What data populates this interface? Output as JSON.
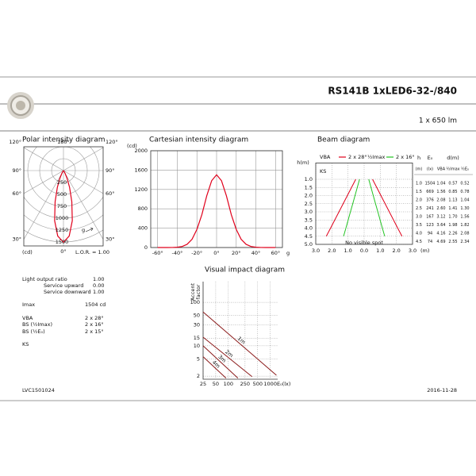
{
  "header": {
    "title": "RS141B 1xLED6-32-/840",
    "flux": "1 x 650 lm"
  },
  "intensity": {
    "angles": [
      -60,
      -55,
      -50,
      -45,
      -40,
      -35,
      -30,
      -25,
      -20,
      -15,
      -10,
      -5,
      0,
      5,
      10,
      15,
      20,
      25,
      30,
      35,
      40,
      45,
      50,
      55,
      60
    ],
    "values": [
      0,
      0,
      0,
      1,
      6,
      21,
      66,
      170,
      375,
      678,
      1069,
      1381,
      1504,
      1381,
      1069,
      678,
      375,
      170,
      66,
      21,
      6,
      1,
      0,
      0,
      0
    ],
    "color": "#e0001b"
  },
  "polar": {
    "title": "Polar intensity diagram",
    "unit": "(cd)",
    "rticks": [
      250,
      500,
      750,
      1000,
      1250,
      1500
    ],
    "angle_ticks": [
      {
        "value": -120,
        "label": "120°"
      },
      {
        "value": 180,
        "label": "180°"
      },
      {
        "value": 120,
        "label": "120°"
      },
      {
        "value": -90,
        "label": "90°"
      },
      {
        "value": 90,
        "label": "90°"
      },
      {
        "value": -60,
        "label": "60°"
      },
      {
        "value": 60,
        "label": "60°"
      },
      {
        "value": -30,
        "label": "30°"
      },
      {
        "value": 30,
        "label": "30°"
      },
      {
        "value": 0,
        "label": "0°"
      }
    ],
    "lor": "L.O.R. = 1.00",
    "g": "g"
  },
  "cartesian": {
    "title": "Cartesian intensity diagram",
    "unit": "(cd)",
    "xlim": [
      -67,
      67
    ],
    "ylim": [
      0,
      2000
    ],
    "yticks": [
      0,
      400,
      800,
      1200,
      1600,
      2000
    ],
    "xticks": [
      {
        "value": -60,
        "label": "-60°"
      },
      {
        "value": -40,
        "label": "-40°"
      },
      {
        "value": -20,
        "label": "-20°"
      },
      {
        "value": 0,
        "label": "0°"
      },
      {
        "value": 20,
        "label": "20°"
      },
      {
        "value": 40,
        "label": "40°"
      },
      {
        "value": 60,
        "label": "60°"
      }
    ],
    "x_label": "g",
    "grid": true
  },
  "beam": {
    "title": "Beam diagram",
    "y_label": "h(m)",
    "ylim": [
      0,
      5
    ],
    "yticks": [
      {
        "value": 1,
        "label": "1.0"
      },
      1.5,
      {
        "value": 2,
        "label": "2.0"
      },
      2.5,
      {
        "value": 3,
        "label": "3.0"
      },
      3.5,
      {
        "value": 4,
        "label": "4.0"
      },
      4.5,
      {
        "value": 5,
        "label": "5.0"
      }
    ],
    "xlim": [
      -3,
      3
    ],
    "xticks": [
      {
        "value": -3,
        "label": "3.0"
      },
      {
        "value": -2,
        "label": "2.0"
      },
      {
        "value": -1,
        "label": "1.0"
      },
      {
        "value": 0,
        "label": "0.0"
      },
      {
        "value": 1,
        "label": "1.0"
      },
      {
        "value": 2,
        "label": "2.0"
      },
      {
        "value": 3,
        "label": "3.0"
      }
    ],
    "x_unit": "(m)",
    "legend": [
      {
        "label": "VBA",
        "name": "2 x 28°",
        "color": "#e0001b"
      },
      {
        "label": "½Imax",
        "name": "2 x 16°",
        "color": "#22c322"
      }
    ],
    "ks": "KS",
    "no_spot": "No visible spot",
    "table": {
      "header": [
        "h",
        "E₀",
        "d(m)"
      ],
      "units": [
        "(m)",
        "(lx)",
        "VBA",
        "½Imax",
        "½E₀"
      ],
      "rows": [
        [
          "1.0",
          "1504",
          "1.04",
          "0.57",
          "0.52"
        ],
        [
          "1.5",
          "669",
          "1.56",
          "0.85",
          "0.78"
        ],
        [
          "2.0",
          "376",
          "2.08",
          "1.13",
          "1.04"
        ],
        [
          "2.5",
          "241",
          "2.60",
          "1.41",
          "1.30"
        ],
        [
          "3.0",
          "167",
          "3.12",
          "1.70",
          "1.56"
        ],
        [
          "3.5",
          "123",
          "3.64",
          "1.98",
          "1.82"
        ],
        [
          "4.0",
          "94",
          "4.16",
          "2.26",
          "2.08"
        ],
        [
          "4.5",
          "74",
          "4.69",
          "2.55",
          "2.34"
        ]
      ]
    }
  },
  "impact": {
    "title": "Visual impact diagram",
    "y_label": [
      "Accent",
      "factor"
    ],
    "x_label": "E₀(lx)",
    "log": true,
    "xlim": [
      25,
      1500
    ],
    "ylim": [
      1.7,
      300
    ],
    "xticks": [
      25,
      50,
      100,
      250,
      500,
      1000
    ],
    "yticks": [
      100,
      50,
      30,
      15,
      10,
      5,
      2
    ],
    "color": "#8b1a1a",
    "series": [
      {
        "name": "1m",
        "x": [
          25,
          1400
        ],
        "values": [
          60,
          2.1
        ]
      },
      {
        "name": "2m",
        "x": [
          25,
          367
        ],
        "values": [
          15.8,
          1.95
        ]
      },
      {
        "name": "3m",
        "x": [
          25,
          169
        ],
        "values": [
          10,
          1.8
        ]
      },
      {
        "name": "4m",
        "x": [
          25,
          88
        ],
        "values": [
          5.6,
          1.8
        ]
      }
    ]
  },
  "info": {
    "rows": [
      [
        "Light output ratio",
        "1.00"
      ],
      [
        "Service upward",
        "0.00"
      ],
      [
        "Service downward",
        "1.00"
      ],
      [
        "Imax",
        "1504 cd"
      ],
      [
        "VBA",
        "2 x 28°"
      ],
      [
        "BS (½Imax)",
        "2 x 16°"
      ],
      [
        "BS (½E₀)",
        "2 x 15°"
      ]
    ],
    "ks": "KS"
  },
  "footer": {
    "code": "LVC1501024",
    "date": "2016-11-28"
  }
}
